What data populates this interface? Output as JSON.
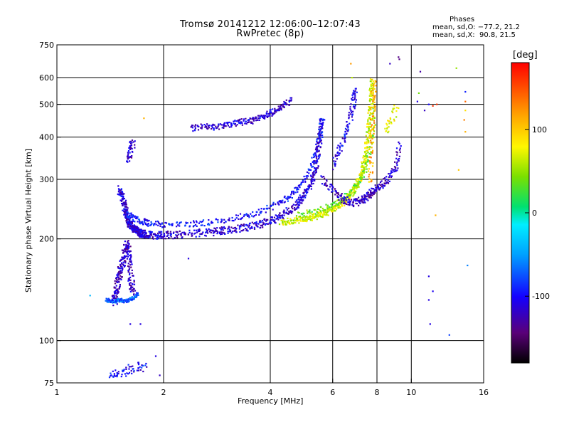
{
  "header": {
    "title_line1": "Tromsø 20141212 12:06:00–12:07:43",
    "title_line2": "RwPretec (8p)",
    "stats_heading": "Phases",
    "stats_o": "mean, sd,O: −77.2, 21.2",
    "stats_x": "mean, sd,X:  90.8, 21.5"
  },
  "colorbar": {
    "unit_label": "[deg]",
    "range": [
      -180,
      180
    ],
    "ticks": [
      {
        "value": 100,
        "label": "100"
      },
      {
        "value": 0,
        "label": "0"
      },
      {
        "value": -100,
        "label": "-100"
      }
    ]
  },
  "chart_data": {
    "type": "scatter",
    "title": "Tromsø 20141212 12:06:00–12:07:43",
    "subtitle": "RwPretec (8p)",
    "xlabel": "Frequency [MHz]",
    "ylabel": "Stationary phase Virtual Height [km]",
    "xscale": "log2",
    "yscale": "log",
    "xlim": [
      1,
      16
    ],
    "ylim": [
      75,
      750
    ],
    "x_ticks": [
      {
        "value": 1,
        "label": "1"
      },
      {
        "value": 2,
        "label": "2"
      },
      {
        "value": 4,
        "label": "4"
      },
      {
        "value": 6,
        "label": "6"
      },
      {
        "value": 8,
        "label": "8"
      },
      {
        "value": 10,
        "label": "10"
      },
      {
        "value": 16,
        "label": "16"
      }
    ],
    "y_ticks": [
      {
        "value": 75,
        "label": "75"
      },
      {
        "value": 100,
        "label": "100"
      },
      {
        "value": 200,
        "label": "200"
      },
      {
        "value": 300,
        "label": "300"
      },
      {
        "value": 400,
        "label": "400"
      },
      {
        "value": 500,
        "label": "500"
      },
      {
        "value": 600,
        "label": "600"
      },
      {
        "value": 750,
        "label": "750"
      }
    ],
    "grid": true,
    "grid_x": [
      2,
      4,
      6,
      8,
      10
    ],
    "grid_y": [
      100,
      200,
      300,
      400,
      500,
      600
    ],
    "color_by": "phase [deg]",
    "color_range": [
      -180,
      180
    ],
    "traces": [
      {
        "x": [
          1.5,
          1.53,
          1.56,
          1.58,
          1.6,
          1.62,
          1.65,
          1.68,
          1.7,
          1.72,
          1.75,
          1.8,
          1.9,
          2.0,
          2.2,
          2.5,
          2.8,
          3.0,
          3.3,
          3.6,
          3.9,
          4.2,
          4.5,
          4.8,
          5.0,
          5.2,
          5.35,
          5.45,
          5.55,
          5.62
        ],
        "y": [
          280,
          262,
          245,
          232,
          224,
          218,
          214,
          211,
          209,
          208,
          207,
          206,
          205,
          205,
          206,
          208,
          210,
          212,
          215,
          219,
          224,
          231,
          241,
          256,
          270,
          290,
          320,
          360,
          410,
          470
        ],
        "phase": -112,
        "jitter": 0.025,
        "n": 6
      },
      {
        "x": [
          1.58,
          1.65,
          1.75,
          1.85,
          2.0,
          2.3,
          2.6,
          3.0,
          3.4,
          3.8,
          4.2,
          4.5,
          4.8,
          5.1,
          5.35,
          5.5,
          5.6
        ],
        "y": [
          236,
          230,
          225,
          222,
          220,
          221,
          223,
          227,
          234,
          242,
          254,
          266,
          283,
          310,
          350,
          400,
          455
        ],
        "phase": -95,
        "jitter": 0.02,
        "n": 4
      },
      {
        "x": [
          4.3,
          4.6,
          4.9,
          5.2,
          5.5,
          5.8,
          6.1,
          6.4,
          6.7,
          6.95,
          7.15,
          7.3,
          7.45,
          7.55,
          7.65,
          7.72,
          7.78
        ],
        "y": [
          224,
          226,
          228,
          231,
          235,
          240,
          247,
          256,
          268,
          283,
          300,
          325,
          360,
          410,
          470,
          540,
          600
        ],
        "phase": 68,
        "jitter": 0.022,
        "n": 6
      },
      {
        "x": [
          4.8,
          5.2,
          5.6,
          6.0,
          6.4,
          6.8,
          7.1,
          7.4,
          7.6,
          7.8,
          7.9
        ],
        "y": [
          236,
          240,
          245,
          252,
          262,
          276,
          292,
          318,
          355,
          420,
          500
        ],
        "phase": 40,
        "jitter": 0.02,
        "n": 3
      },
      {
        "x": [
          5.6,
          6.0,
          6.3,
          6.6,
          6.9,
          7.15,
          7.35,
          7.55,
          7.75,
          7.95,
          8.3,
          8.7,
          9.1,
          9.3
        ],
        "y": [
          300,
          280,
          266,
          258,
          256,
          258,
          262,
          268,
          274,
          280,
          290,
          305,
          330,
          390
        ],
        "phase": -118,
        "jitter": 0.025,
        "n": 4
      },
      {
        "x": [
          6.0,
          6.3,
          6.55,
          6.75,
          6.9,
          7.0
        ],
        "y": [
          330,
          370,
          420,
          470,
          520,
          560
        ],
        "phase": -105,
        "jitter": 0.03,
        "n": 4
      },
      {
        "x": [
          2.4,
          2.6,
          2.8,
          3.0,
          3.2,
          3.4,
          3.6,
          3.8,
          4.0,
          4.2,
          4.4,
          4.6
        ],
        "y": [
          425,
          430,
          428,
          435,
          440,
          445,
          448,
          460,
          470,
          485,
          500,
          520
        ],
        "phase": -112,
        "jitter": 0.02,
        "n": 4
      },
      {
        "x": [
          1.45,
          1.47,
          1.49,
          1.52,
          1.55,
          1.58,
          1.6,
          1.62,
          1.65
        ],
        "y": [
          130,
          140,
          152,
          165,
          180,
          196,
          175,
          150,
          135
        ],
        "phase": -120,
        "jitter": 0.03,
        "n": 6
      },
      {
        "x": [
          1.38,
          1.42,
          1.46,
          1.5,
          1.55,
          1.6,
          1.65,
          1.7
        ],
        "y": [
          132,
          131,
          131,
          132,
          131,
          132,
          134,
          138
        ],
        "phase": -75,
        "jitter": 0.012,
        "n": 4
      },
      {
        "x": [
          1.58,
          1.6,
          1.62,
          1.64
        ],
        "y": [
          345,
          360,
          375,
          390
        ],
        "phase": -115,
        "jitter": 0.03,
        "n": 3
      },
      {
        "x": [
          1.4,
          1.5,
          1.6,
          1.7,
          1.8
        ],
        "y": [
          79,
          80,
          82,
          84,
          83
        ],
        "phase": -100,
        "jitter": 0.03,
        "n": 3
      },
      {
        "x": [
          7.65,
          7.72,
          7.8,
          7.85
        ],
        "y": [
          300,
          400,
          500,
          600
        ],
        "phase": 112,
        "jitter": 0.025,
        "n": 6
      },
      {
        "x": [
          8.5,
          8.8,
          9.1
        ],
        "y": [
          420,
          450,
          500
        ],
        "phase": 75,
        "jitter": 0.03,
        "n": 3
      }
    ],
    "points": [
      {
        "x": 1.76,
        "y": 455,
        "phase": 110
      },
      {
        "x": 1.61,
        "y": 112,
        "phase": -110
      },
      {
        "x": 1.72,
        "y": 112,
        "phase": -110
      },
      {
        "x": 2.35,
        "y": 175,
        "phase": -110
      },
      {
        "x": 1.24,
        "y": 136,
        "phase": -40
      },
      {
        "x": 1.95,
        "y": 79,
        "phase": -120
      },
      {
        "x": 1.9,
        "y": 90,
        "phase": -110
      },
      {
        "x": 6.75,
        "y": 660,
        "phase": 120
      },
      {
        "x": 6.8,
        "y": 600,
        "phase": 60
      },
      {
        "x": 6.85,
        "y": 540,
        "phase": -110
      },
      {
        "x": 8.7,
        "y": 660,
        "phase": -120
      },
      {
        "x": 9.2,
        "y": 690,
        "phase": -140
      },
      {
        "x": 9.25,
        "y": 680,
        "phase": -140
      },
      {
        "x": 10.6,
        "y": 625,
        "phase": -130
      },
      {
        "x": 10.5,
        "y": 540,
        "phase": 40
      },
      {
        "x": 10.4,
        "y": 510,
        "phase": -110
      },
      {
        "x": 10.9,
        "y": 480,
        "phase": -120
      },
      {
        "x": 11.2,
        "y": 500,
        "phase": -100
      },
      {
        "x": 11.5,
        "y": 495,
        "phase": 160
      },
      {
        "x": 11.8,
        "y": 500,
        "phase": 160
      },
      {
        "x": 13.4,
        "y": 640,
        "phase": 50
      },
      {
        "x": 14.2,
        "y": 545,
        "phase": -90
      },
      {
        "x": 14.2,
        "y": 510,
        "phase": 140
      },
      {
        "x": 14.2,
        "y": 480,
        "phase": 90
      },
      {
        "x": 14.1,
        "y": 450,
        "phase": 130
      },
      {
        "x": 14.2,
        "y": 415,
        "phase": 110
      },
      {
        "x": 13.6,
        "y": 320,
        "phase": 100
      },
      {
        "x": 11.7,
        "y": 235,
        "phase": 110
      },
      {
        "x": 11.2,
        "y": 155,
        "phase": -110
      },
      {
        "x": 11.2,
        "y": 132,
        "phase": -110
      },
      {
        "x": 11.3,
        "y": 112,
        "phase": -110
      },
      {
        "x": 11.5,
        "y": 140,
        "phase": -105
      },
      {
        "x": 12.8,
        "y": 104,
        "phase": -80
      },
      {
        "x": 14.4,
        "y": 167,
        "phase": -60
      }
    ]
  }
}
